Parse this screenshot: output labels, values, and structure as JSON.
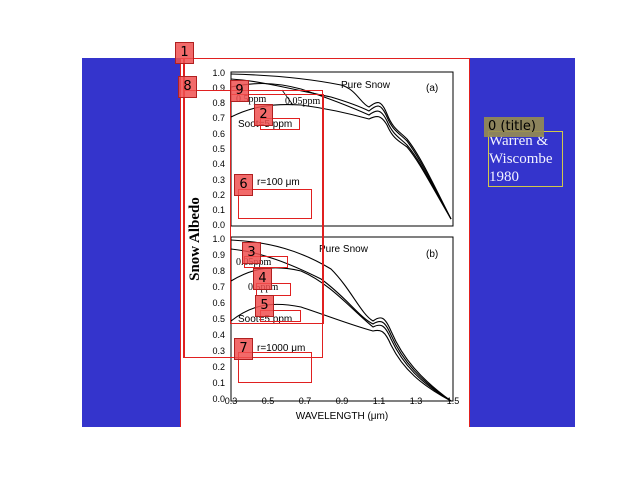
{
  "slide": {
    "background_color": "#3434cc",
    "title_box": {
      "tag_label": "0 (title)",
      "text": "Warren &\nWiscombe\n1980"
    }
  },
  "figure": {
    "y_axis_label": "Snow Albedo",
    "x_axis_label": "WAVELENGTH (μm)",
    "panel_a": {
      "letter": "(a)",
      "legend_top": "Pure Snow",
      "label_005ppm": "0.05ppm",
      "label_05ppm": "0.5ppm",
      "label_soot": "Soot=5 ppm",
      "label_radius": "r=100 μm",
      "y_ticks": [
        "1.0",
        "0.9",
        "0.8",
        "0.7",
        "0.6",
        "0.5",
        "0.4",
        "0.3",
        "0.2",
        "0.1",
        "0.0"
      ]
    },
    "panel_b": {
      "letter": "(b)",
      "legend_top": "Pure Snow",
      "label_005ppm": "0.05ppm",
      "label_05ppm": "0.5ppm",
      "label_soot": "Soot=5 ppm",
      "label_radius": "r=1000 μm",
      "y_ticks": [
        "1.0",
        "0.9",
        "0.8",
        "0.7",
        "0.6",
        "0.5",
        "0.4",
        "0.3",
        "0.2",
        "0.1",
        "0.0"
      ]
    },
    "x_ticks": [
      "0.3",
      "0.5",
      "0.7",
      "0.9",
      "1.1",
      "1.3",
      "1.5"
    ]
  },
  "annotation_tags": [
    "1",
    "2",
    "3",
    "4",
    "5",
    "6",
    "7",
    "8",
    "9"
  ],
  "colors": {
    "annotation_red": "#e02020",
    "title_outline": "#d0c84a"
  }
}
